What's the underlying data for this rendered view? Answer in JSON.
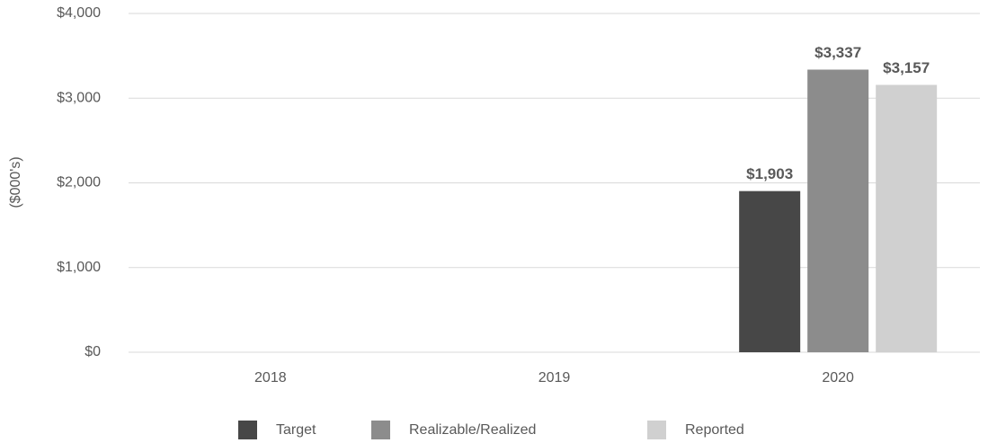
{
  "chart_data": {
    "type": "bar",
    "y_axis_label": "($000's)",
    "categories": [
      "2018",
      "2019",
      "2020"
    ],
    "series": [
      {
        "name": "Target",
        "color": "#474747",
        "values": [
          null,
          null,
          1903
        ],
        "value_labels": [
          null,
          null,
          "$1,903"
        ]
      },
      {
        "name": "Realizable/Realized",
        "color": "#8c8c8c",
        "values": [
          null,
          null,
          3337
        ],
        "value_labels": [
          null,
          null,
          "$3,337"
        ]
      },
      {
        "name": "Reported",
        "color": "#d0d0d0",
        "values": [
          null,
          null,
          3157
        ],
        "value_labels": [
          null,
          null,
          "$3,157"
        ]
      }
    ],
    "ylim": [
      0,
      4000
    ],
    "yticks": [
      {
        "value": 0,
        "label": "$0"
      },
      {
        "value": 1000,
        "label": "$1,000"
      },
      {
        "value": 2000,
        "label": "$2,000"
      },
      {
        "value": 3000,
        "label": "$3,000"
      },
      {
        "value": 4000,
        "label": "$4,000"
      }
    ],
    "grid": true,
    "legend": "bottom"
  }
}
